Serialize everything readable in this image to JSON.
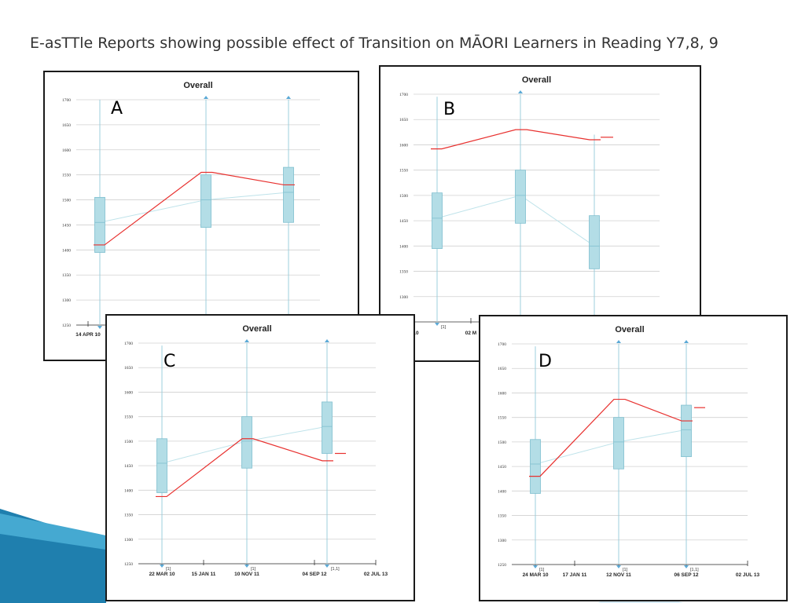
{
  "slide": {
    "title": "E-asTTle Reports showing possible effect of Transition on MĀORI Learners in Reading Y7,8, 9"
  },
  "colors": {
    "box_fill": "#b3dde6",
    "box_stroke": "#7fbfcf",
    "whisker": "#9ccfdc",
    "trend": "#bfe3ea",
    "red_line": "#e8312f",
    "grid": "#d0d0d0",
    "marker": "#5aa9d6"
  },
  "chart_data": [
    {
      "type": "box",
      "panel": "A",
      "title": "Overall",
      "ylim": [
        1250,
        1700
      ],
      "yticks": [
        "1250",
        "1300",
        "1350",
        "1400",
        "1450",
        "1500",
        "1550",
        "1600",
        "1650",
        "1700"
      ],
      "x_tick_labels": [
        "14 APR 10"
      ],
      "boxes": [
        {
          "q1": 1395,
          "median": 1455,
          "q3": 1505,
          "whisker_top": 1700,
          "whisker_bottom": 1250,
          "marker_top": false
        },
        {
          "q1": 1445,
          "median": 1500,
          "q3": 1550,
          "whisker_top": 1700,
          "whisker_bottom": 1250,
          "marker_top": true
        },
        {
          "q1": 1455,
          "median": 1515,
          "q3": 1565,
          "whisker_top": 1700,
          "whisker_bottom": 1250,
          "marker_top": true
        }
      ],
      "trend": [
        1455,
        1500,
        1515
      ],
      "student": [
        1410,
        1555,
        1530
      ],
      "student_tail": null
    },
    {
      "type": "box",
      "panel": "B",
      "title": "Overall",
      "ylim": [
        1250,
        1700
      ],
      "yticks": [
        "1300",
        "1350",
        "1400",
        "1450",
        "1500",
        "1550",
        "1600",
        "1650",
        "1700"
      ],
      "x_tick_labels": [
        "AY 10",
        "02 M"
      ],
      "bottom_marks": [
        "[1]"
      ],
      "boxes": [
        {
          "q1": 1395,
          "median": 1455,
          "q3": 1505,
          "whisker_top": 1695,
          "whisker_bottom": 1250,
          "marker_top": false
        },
        {
          "q1": 1445,
          "median": 1500,
          "q3": 1550,
          "whisker_top": 1700,
          "whisker_bottom": 1250,
          "marker_top": true
        },
        {
          "q1": 1355,
          "median": 1400,
          "q3": 1460,
          "whisker_top": 1620,
          "whisker_bottom": 1250,
          "marker_top": false
        }
      ],
      "trend": [
        1455,
        1500,
        1400
      ],
      "student": [
        1592,
        1630,
        1610
      ],
      "student_tail": 1615
    },
    {
      "type": "box",
      "panel": "C",
      "title": "Overall",
      "ylim": [
        1250,
        1700
      ],
      "yticks": [
        "1250",
        "1300",
        "1350",
        "1400",
        "1450",
        "1500",
        "1550",
        "1600",
        "1650",
        "1700"
      ],
      "x_tick_labels": [
        "22 MAR 10",
        "15 JAN 11",
        "10 NOV 11",
        "04 SEP 12",
        "02 JUL 13"
      ],
      "bottom_marks": [
        "[1]",
        "[1]",
        "[1,1]"
      ],
      "boxes": [
        {
          "q1": 1395,
          "median": 1455,
          "q3": 1505,
          "whisker_top": 1695,
          "whisker_bottom": 1250,
          "marker_top": false
        },
        {
          "q1": 1445,
          "median": 1500,
          "q3": 1550,
          "whisker_top": 1700,
          "whisker_bottom": 1250,
          "marker_top": true
        },
        {
          "q1": 1475,
          "median": 1530,
          "q3": 1580,
          "whisker_top": 1700,
          "whisker_bottom": 1250,
          "marker_top": true
        }
      ],
      "trend": [
        1455,
        1500,
        1530
      ],
      "student": [
        1387,
        1505,
        1460
      ],
      "student_tail": 1475
    },
    {
      "type": "box",
      "panel": "D",
      "title": "Overall",
      "ylim": [
        1250,
        1700
      ],
      "yticks": [
        "1250",
        "1300",
        "1350",
        "1400",
        "1450",
        "1500",
        "1550",
        "1600",
        "1650",
        "1700"
      ],
      "x_tick_labels": [
        "24 MAR 10",
        "17 JAN 11",
        "12 NOV 11",
        "06 SEP 12",
        "02 JUL 13"
      ],
      "bottom_marks": [
        "[1]",
        "[1]",
        "[1,1]"
      ],
      "boxes": [
        {
          "q1": 1395,
          "median": 1455,
          "q3": 1505,
          "whisker_top": 1695,
          "whisker_bottom": 1250,
          "marker_top": false
        },
        {
          "q1": 1445,
          "median": 1500,
          "q3": 1550,
          "whisker_top": 1700,
          "whisker_bottom": 1250,
          "marker_top": true
        },
        {
          "q1": 1470,
          "median": 1525,
          "q3": 1575,
          "whisker_top": 1700,
          "whisker_bottom": 1250,
          "marker_top": true
        }
      ],
      "trend": [
        1455,
        1500,
        1525
      ],
      "student": [
        1430,
        1587,
        1543
      ],
      "student_tail": 1570
    }
  ]
}
